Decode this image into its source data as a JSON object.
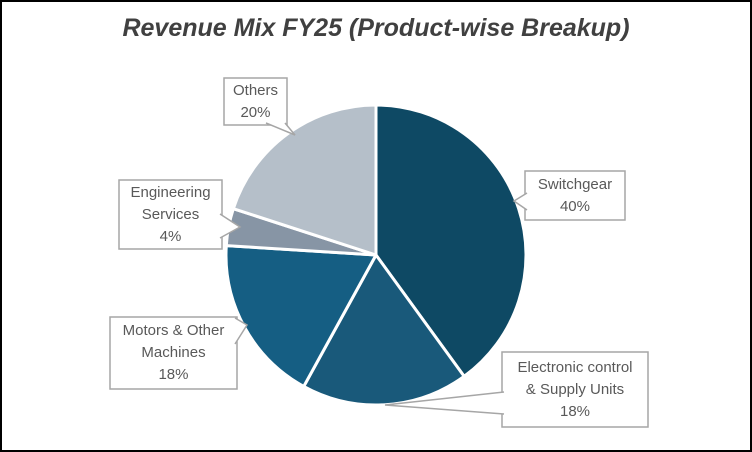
{
  "title": "Revenue Mix FY25 (Product-wise Breakup)",
  "chart_data": {
    "type": "pie",
    "title": "Revenue Mix FY25 (Product-wise Breakup)",
    "start_angle_deg": 0,
    "direction": "clockwise",
    "slices": [
      {
        "label": "Switchgear",
        "value_pct": 40,
        "color": "#0e4964"
      },
      {
        "label": "Electronic control & Supply Units",
        "value_pct": 18,
        "color": "#19597a"
      },
      {
        "label": "Motors & Other Machines",
        "value_pct": 18,
        "color": "#155e83"
      },
      {
        "label": "Engineering Services",
        "value_pct": 4,
        "color": "#8795a5"
      },
      {
        "label": "Others",
        "value_pct": 20,
        "color": "#b5bfc9"
      }
    ],
    "slice_separator_color": "#ffffff",
    "legend": "none",
    "data_labels": "callouts"
  },
  "callouts": {
    "others": {
      "text": "Others\n20%"
    },
    "switchgear": {
      "text": "Switchgear\n40%"
    },
    "engineering": {
      "text": "Engineering\nServices\n4%"
    },
    "motors": {
      "text": "Motors & Other\nMachines\n18%"
    },
    "electronic": {
      "text": "Electronic control\n& Supply Units\n18%"
    }
  },
  "styles": {
    "title_color": "#404040",
    "callout_border_color": "#a6a6a6",
    "callout_fill_color": "#ffffff",
    "callout_text_color": "#595959",
    "frame_border_color": "#000000",
    "background_color": "#ffffff"
  }
}
